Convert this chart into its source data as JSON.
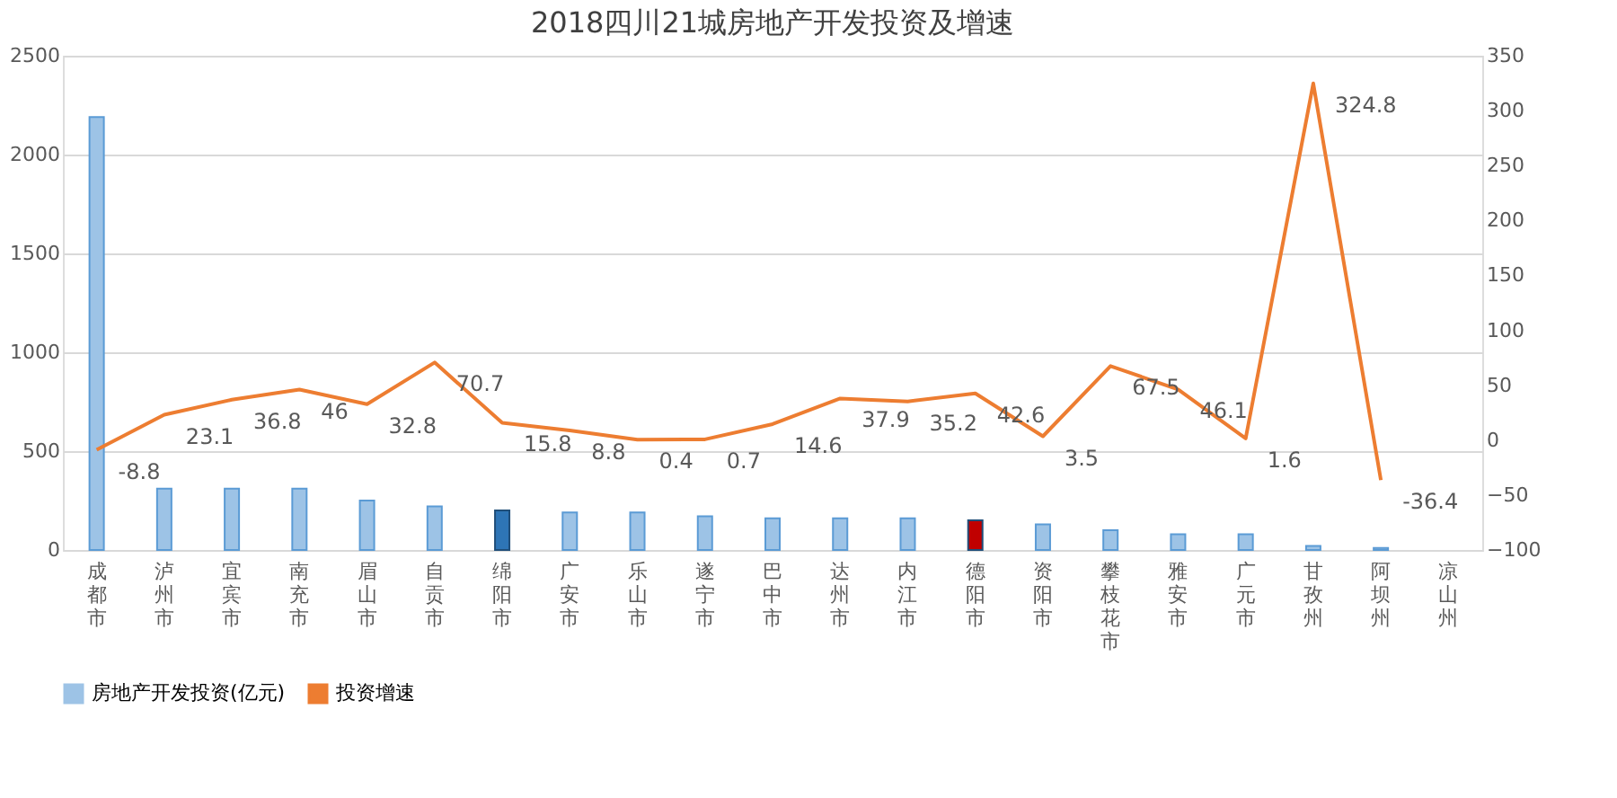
{
  "chart_data": {
    "type": "bar",
    "title": "2018四川21城房地产开发投资及增速",
    "categories": [
      "成都市",
      "泸州市",
      "宜宾市",
      "南充市",
      "眉山市",
      "自贡市",
      "绵阳市",
      "广安市",
      "乐山市",
      "遂宁市",
      "巴中市",
      "达州市",
      "内江市",
      "德阳市",
      "资阳市",
      "攀枝花市",
      "雅安市",
      "广元市",
      "甘孜州",
      "阿坝州",
      "凉山州"
    ],
    "series": [
      {
        "name": "房地产开发投资(亿元)",
        "color": "#9dc3e6",
        "colors": [
          "#9dc3e6",
          "#9dc3e6",
          "#9dc3e6",
          "#9dc3e6",
          "#9dc3e6",
          "#9dc3e6",
          "#2e75b6",
          "#9dc3e6",
          "#9dc3e6",
          "#9dc3e6",
          "#9dc3e6",
          "#9dc3e6",
          "#9dc3e6",
          "#c00000",
          "#9dc3e6",
          "#9dc3e6",
          "#9dc3e6",
          "#9dc3e6",
          "#9dc3e6",
          "#9dc3e6",
          "#9dc3e6"
        ],
        "values": [
          2190,
          310,
          310,
          310,
          250,
          220,
          200,
          190,
          190,
          170,
          160,
          160,
          160,
          150,
          130,
          100,
          80,
          80,
          20,
          10,
          null
        ]
      },
      {
        "name": "投资增速",
        "type": "line",
        "axis": "y2",
        "color": "#ed7d31",
        "values": [
          -8.8,
          23.1,
          36.8,
          46,
          32.8,
          70.7,
          15.8,
          8.8,
          0.4,
          0.7,
          14.6,
          37.9,
          35.2,
          42.6,
          3.5,
          67.5,
          46.1,
          1.6,
          324.8,
          -36.4,
          null
        ],
        "value_labels": [
          "-8.8",
          "23.1",
          "36.8",
          "46",
          "32.8",
          "70.7",
          "15.8",
          "8.8",
          "0.4",
          "0.7",
          "14.6",
          "37.9",
          "35.2",
          "42.6",
          "3.5",
          "67.5",
          "46.1",
          "1.6",
          "324.8",
          "-36.4",
          null
        ]
      }
    ],
    "ylim": [
      0,
      2500
    ],
    "yticks": [
      0,
      500,
      1000,
      1500,
      2000,
      2500
    ],
    "y2lim": [
      -100,
      350
    ],
    "y2ticks": [
      -100,
      -50,
      0,
      50,
      100,
      150,
      200,
      250,
      300,
      350
    ],
    "grid": "y",
    "legend": "bottom"
  }
}
